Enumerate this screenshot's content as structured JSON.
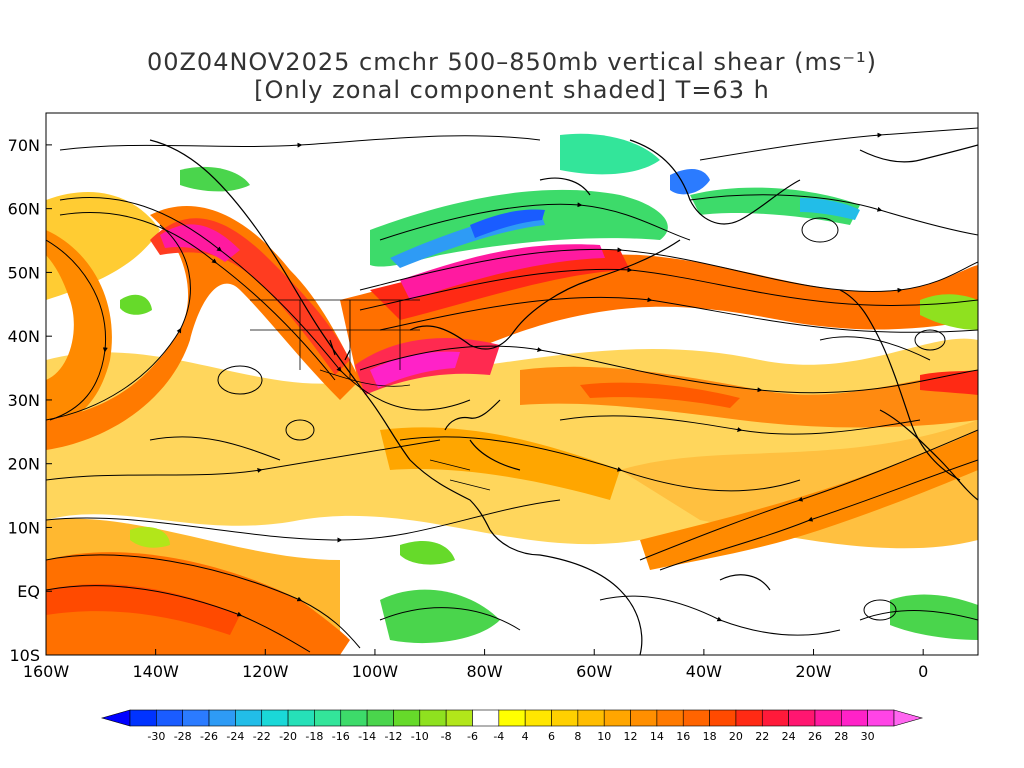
{
  "title": {
    "line1": "00Z04NOV2025 cmchr 500–850mb vertical shear (ms⁻¹)",
    "line2": "[Only zonal component shaded] T=63 h"
  },
  "map": {
    "lon_range": [
      -160,
      10
    ],
    "lat_range": [
      -10,
      75
    ],
    "x_ticks": [
      {
        "lon": -160,
        "label": "160W"
      },
      {
        "lon": -140,
        "label": "140W"
      },
      {
        "lon": -120,
        "label": "120W"
      },
      {
        "lon": -100,
        "label": "100W"
      },
      {
        "lon": -80,
        "label": "80W"
      },
      {
        "lon": -60,
        "label": "60W"
      },
      {
        "lon": -40,
        "label": "40W"
      },
      {
        "lon": -20,
        "label": "20W"
      },
      {
        "lon": 0,
        "label": "0"
      }
    ],
    "y_ticks": [
      {
        "lat": -10,
        "label": "10S"
      },
      {
        "lat": 0,
        "label": "EQ"
      },
      {
        "lat": 10,
        "label": "10N"
      },
      {
        "lat": 20,
        "label": "20N"
      },
      {
        "lat": 30,
        "label": "30N"
      },
      {
        "lat": 40,
        "label": "40N"
      },
      {
        "lat": 50,
        "label": "50N"
      },
      {
        "lat": 60,
        "label": "60N"
      },
      {
        "lat": 70,
        "label": "70N"
      }
    ]
  },
  "colorbar": {
    "labels": [
      "-30",
      "-28",
      "-26",
      "-24",
      "-22",
      "-20",
      "-18",
      "-16",
      "-14",
      "-12",
      "-10",
      "-8",
      "-6",
      "-4",
      "4",
      "6",
      "8",
      "10",
      "12",
      "14",
      "16",
      "18",
      "20",
      "22",
      "24",
      "26",
      "28",
      "30"
    ],
    "colors": [
      "#0033ff",
      "#1a5cff",
      "#2b7bff",
      "#2e9bf5",
      "#22bde8",
      "#1ad8d8",
      "#26e0b8",
      "#33e59a",
      "#3ddb6a",
      "#4ad54c",
      "#66da2a",
      "#8fe11f",
      "#b2e61a",
      "#ffffff",
      "#ffff00",
      "#ffe600",
      "#ffd000",
      "#ffbd00",
      "#ffa600",
      "#ff8f00",
      "#ff7a00",
      "#ff6400",
      "#ff4a00",
      "#ff2a14",
      "#ff1a3a",
      "#ff1670",
      "#ff1aa0",
      "#ff22c8",
      "#ff44e6"
    ]
  }
}
